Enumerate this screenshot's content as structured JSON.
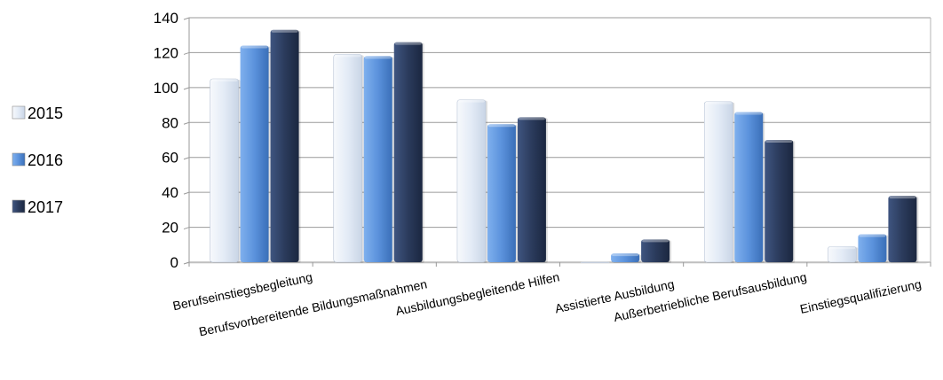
{
  "chart_data": {
    "type": "bar",
    "categories": [
      "Berufseinstiegsbegleitung",
      "Berufsvorbereitende Bildungsmaßnahmen",
      "Ausbildungsbegleitende Hilfen",
      "Assistierte Ausbildung",
      "Außerbetriebliche Berufsausbildung",
      "Einstiegsqualifizierung"
    ],
    "series": [
      {
        "name": "2015",
        "values": [
          105,
          119,
          93,
          0,
          92,
          9
        ],
        "color": "#dde7f5"
      },
      {
        "name": "2016",
        "values": [
          124,
          118,
          79,
          5,
          86,
          16
        ],
        "color": "#5d93dc"
      },
      {
        "name": "2017",
        "values": [
          133,
          126,
          83,
          13,
          70,
          38
        ],
        "color": "#2b3b5c"
      }
    ],
    "yticks": [
      "0",
      "20",
      "40",
      "60",
      "80",
      "100",
      "120",
      "140"
    ],
    "ylim": [
      0,
      140
    ],
    "grid": true,
    "legend_position": "left"
  }
}
